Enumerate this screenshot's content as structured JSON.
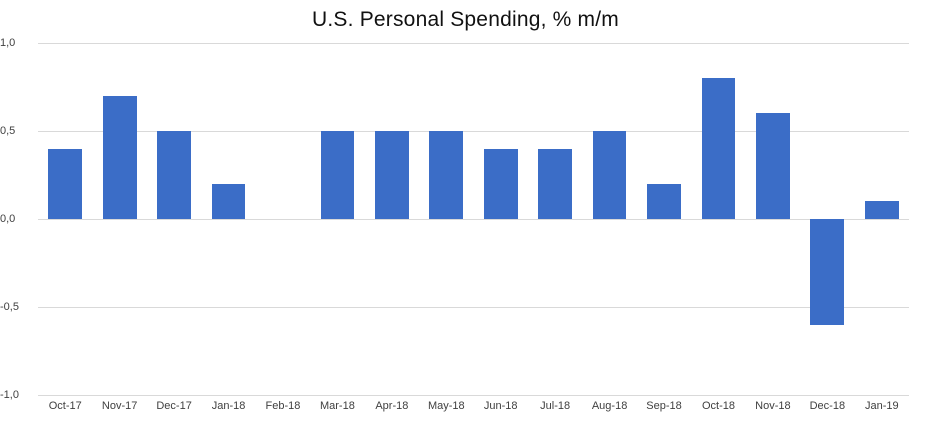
{
  "chart_data": {
    "type": "bar",
    "title": "U.S. Personal Spending, % m/m",
    "categories": [
      "Oct-17",
      "Nov-17",
      "Dec-17",
      "Jan-18",
      "Feb-18",
      "Mar-18",
      "Apr-18",
      "May-18",
      "Jun-18",
      "Jul-18",
      "Aug-18",
      "Sep-18",
      "Oct-18",
      "Nov-18",
      "Dec-18",
      "Jan-19"
    ],
    "values": [
      0.4,
      0.7,
      0.5,
      0.2,
      0.0,
      0.5,
      0.5,
      0.5,
      0.4,
      0.4,
      0.5,
      0.2,
      0.8,
      0.6,
      -0.6,
      0.1
    ],
    "xlabel": "",
    "ylabel": "",
    "ylim": [
      -1.0,
      1.0
    ],
    "yticks": [
      1.0,
      0.5,
      0.0,
      -0.5,
      -1.0
    ],
    "ytick_labels": [
      "1,0",
      "0,5",
      "0,0",
      "-0,5",
      "-1,0"
    ],
    "grid": true,
    "legend_position": "none",
    "bar_color": "#3b6dc7",
    "gridline_color": "#d9d9d9",
    "background_color": "#ffffff"
  }
}
